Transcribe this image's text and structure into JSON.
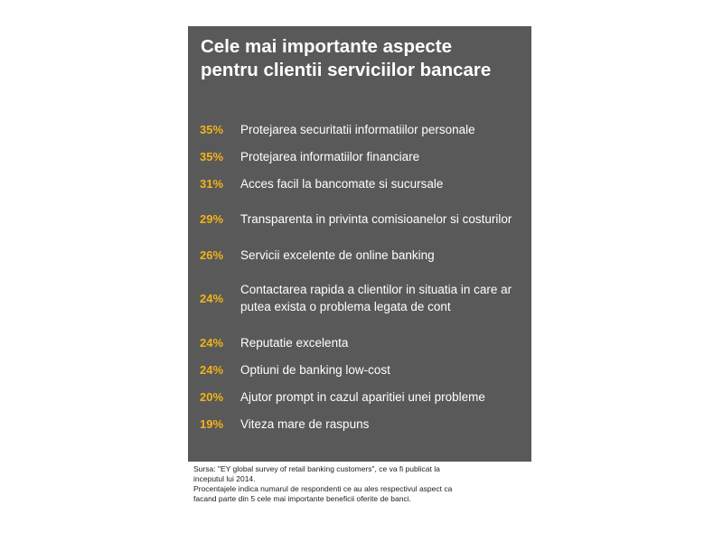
{
  "chart_data": {
    "type": "table",
    "title": "Cele mai importante aspecte pentru clientii serviciilor bancare",
    "colors": {
      "panel": "#595959",
      "percent": "#f2b21b",
      "label": "#ffffff"
    },
    "rows": [
      {
        "value": 35,
        "display": "35%",
        "label": "Protejarea securitatii informatiilor personale"
      },
      {
        "value": 35,
        "display": "35%",
        "label": "Protejarea informatiilor financiare"
      },
      {
        "value": 31,
        "display": "31%",
        "label": "Acces facil la bancomate si sucursale"
      },
      {
        "value": 29,
        "display": "29%",
        "label": "Transparenta in privinta comisioanelor si costurilor"
      },
      {
        "value": 26,
        "display": "26%",
        "label": "Servicii excelente de online banking"
      },
      {
        "value": 24,
        "display": "24%",
        "label": "Contactarea rapida a clientilor in  situatia in care ar putea exista o problema legata de cont"
      },
      {
        "value": 24,
        "display": "24%",
        "label": "Reputatie excelenta"
      },
      {
        "value": 24,
        "display": "24%",
        "label": "Optiuni de banking low-cost"
      },
      {
        "value": 20,
        "display": "20%",
        "label": "Ajutor prompt in cazul aparitiei unei probleme"
      },
      {
        "value": 19,
        "display": "19%",
        "label": "Viteza mare de raspuns"
      }
    ]
  },
  "footnote": {
    "source": "Sursa: \"EY global survey of retail banking customers\", ce va fi publicat la\ninceputul lui 2014.",
    "note": "Procentajele indica numarul de respondenti ce au ales respectivul aspect ca\nfacand parte din 5 cele mai importante beneficii oferite de banci."
  }
}
